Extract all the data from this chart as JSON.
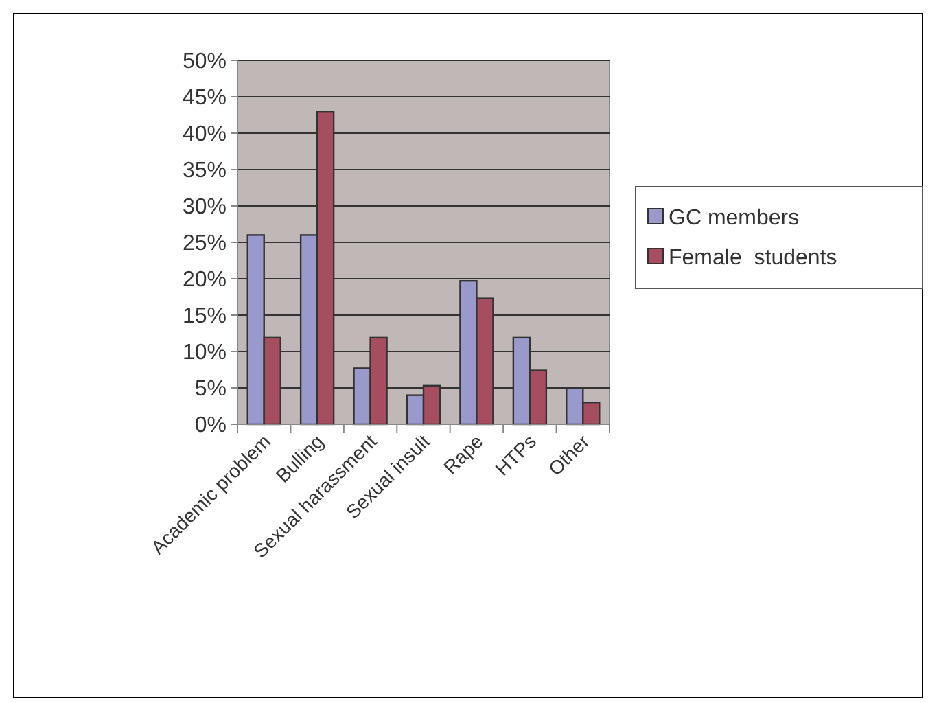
{
  "chart_data": {
    "type": "bar",
    "categories": [
      "Academic problem",
      "Bulling",
      "Sexual harassment",
      "Sexual insult",
      "Rape",
      "HTPs",
      "Other"
    ],
    "series": [
      {
        "name": "GC members",
        "color": "#9999cc",
        "values": [
          26,
          26,
          7.7,
          4,
          19.7,
          11.9,
          5
        ]
      },
      {
        "name": "Female  students",
        "color": "#a64d5f",
        "values": [
          11.9,
          43,
          11.9,
          5.3,
          17.3,
          7.4,
          3
        ]
      }
    ],
    "ylim": [
      0,
      50
    ],
    "yticks": [
      {
        "value": 0,
        "label": "0%"
      },
      {
        "value": 5,
        "label": "5%"
      },
      {
        "value": 10,
        "label": "10%"
      },
      {
        "value": 15,
        "label": "15%"
      },
      {
        "value": 20,
        "label": "20%"
      },
      {
        "value": 25,
        "label": "25%"
      },
      {
        "value": 30,
        "label": "30%"
      },
      {
        "value": 35,
        "label": "35%"
      },
      {
        "value": 40,
        "label": "40%"
      },
      {
        "value": 45,
        "label": "45%"
      },
      {
        "value": 50,
        "label": "50%"
      }
    ],
    "grid": "y",
    "legend": "right"
  }
}
